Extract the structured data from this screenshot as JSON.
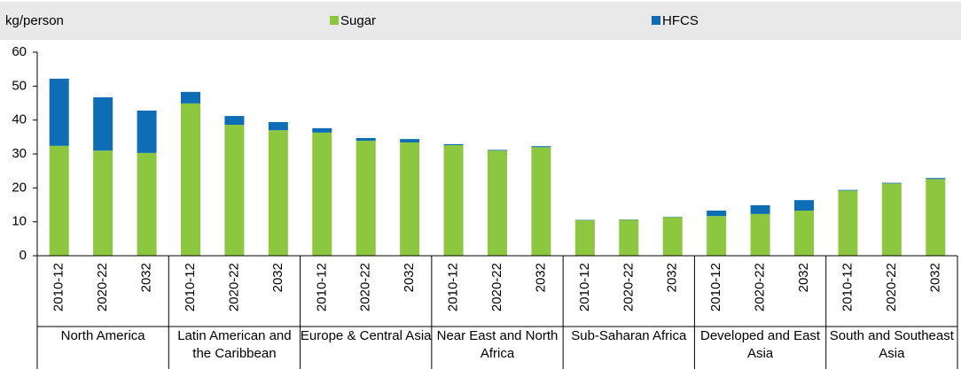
{
  "chart_data": {
    "type": "stacked_bar",
    "y_label": "kg/person",
    "categories": [
      "2010-12",
      "2020-22",
      "2032",
      "2010-12",
      "2020-22",
      "2032",
      "2010-12",
      "2020-22",
      "2032",
      "2010-12",
      "2020-22",
      "2032",
      "2010-12",
      "2020-22",
      "2032",
      "2010-12",
      "2020-22",
      "2032",
      "2010-12",
      "2020-22",
      "2032"
    ],
    "groups": [
      "North America",
      "Latin American and the Caribbean",
      "Europe & Central Asia",
      "Near East and North Africa",
      "Sub-Saharan Africa",
      "Developed and East Asia",
      "South and Southeast Asia"
    ],
    "series": [
      {
        "name": "Sugar",
        "color": "#8dc63f",
        "values": [
          32.4,
          31.0,
          30.3,
          44.9,
          38.6,
          37.0,
          36.3,
          33.9,
          33.4,
          32.6,
          31.0,
          32.0,
          10.5,
          10.6,
          11.4,
          11.7,
          12.3,
          13.3,
          19.2,
          21.3,
          22.6
        ]
      },
      {
        "name": "HFCS",
        "color": "#0f6db5",
        "values": [
          19.8,
          15.7,
          12.5,
          3.4,
          2.6,
          2.4,
          1.3,
          0.8,
          1.0,
          0.3,
          0.2,
          0.3,
          0.1,
          0.1,
          0.1,
          1.6,
          2.6,
          3.1,
          0.2,
          0.2,
          0.3
        ]
      }
    ],
    "ylim": [
      0,
      60
    ],
    "yticks": [
      0,
      10,
      20,
      30,
      40,
      50,
      60
    ]
  }
}
